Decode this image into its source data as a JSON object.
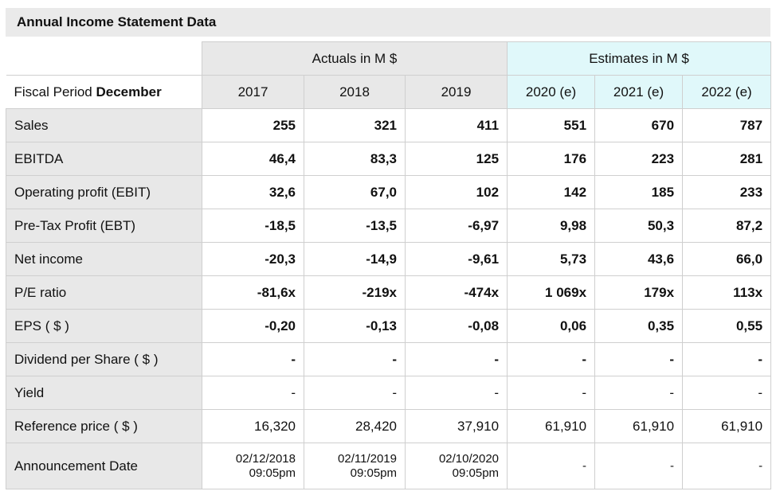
{
  "title": "Annual Income Statement Data",
  "fiscal_period": {
    "label": "Fiscal Period ",
    "month": "December"
  },
  "groups": {
    "actuals": "Actuals in M $",
    "estimates": "Estimates in M $"
  },
  "years": [
    "2017",
    "2018",
    "2019",
    "2020 (e)",
    "2021 (e)",
    "2022 (e)"
  ],
  "rows": [
    {
      "label": "Sales",
      "values": [
        "255",
        "321",
        "411",
        "551",
        "670",
        "787"
      ]
    },
    {
      "label": "EBITDA",
      "values": [
        "46,4",
        "83,3",
        "125",
        "176",
        "223",
        "281"
      ]
    },
    {
      "label": "Operating profit (EBIT)",
      "values": [
        "32,6",
        "67,0",
        "102",
        "142",
        "185",
        "233"
      ]
    },
    {
      "label": "Pre-Tax Profit (EBT)",
      "values": [
        "-18,5",
        "-13,5",
        "-6,97",
        "9,98",
        "50,3",
        "87,2"
      ]
    },
    {
      "label": "Net income",
      "values": [
        "-20,3",
        "-14,9",
        "-9,61",
        "5,73",
        "43,6",
        "66,0"
      ]
    },
    {
      "label": "P/E ratio",
      "values": [
        "-81,6x",
        "-219x",
        "-474x",
        "1 069x",
        "179x",
        "113x"
      ]
    },
    {
      "label": "EPS ( $ )",
      "values": [
        "-0,20",
        "-0,13",
        "-0,08",
        "0,06",
        "0,35",
        "0,55"
      ]
    },
    {
      "label": "Dividend per Share ( $ )",
      "values": [
        "-",
        "-",
        "-",
        "-",
        "-",
        "-"
      ]
    },
    {
      "label": "Yield",
      "values": [
        "-",
        "-",
        "-",
        "-",
        "-",
        "-"
      ]
    },
    {
      "label": "Reference price ( $ )",
      "values": [
        "16,320",
        "28,420",
        "37,910",
        "61,910",
        "61,910",
        "61,910"
      ]
    }
  ],
  "announcement": {
    "label": "Announcement Date",
    "values": [
      {
        "date": "02/12/2018",
        "time": "09:05pm"
      },
      {
        "date": "02/11/2019",
        "time": "09:05pm"
      },
      {
        "date": "02/10/2020",
        "time": "09:05pm"
      },
      {
        "date": "-",
        "time": ""
      },
      {
        "date": "-",
        "time": ""
      },
      {
        "date": "-",
        "time": ""
      }
    ]
  }
}
